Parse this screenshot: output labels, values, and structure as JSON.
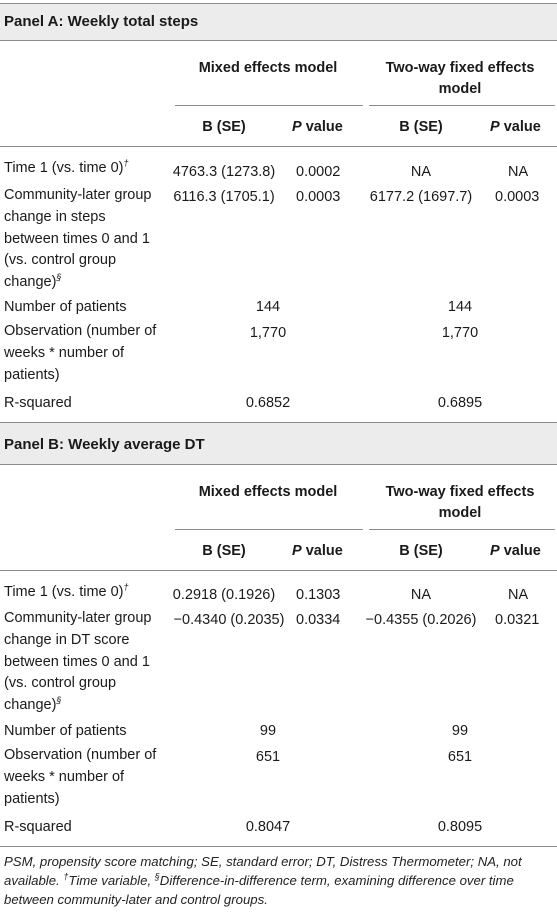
{
  "panels": [
    {
      "title": "Panel A: Weekly total steps",
      "model1": "Mixed effects model",
      "model2_line1": "Two-way fixed effects",
      "model2_line2": "model",
      "col_b": "B (SE)",
      "col_p_italic": "P",
      "col_p_rest": " value",
      "rows": [
        {
          "label_lines": [
            "Time 1 (vs. time 0)"
          ],
          "label_sup": "†",
          "m1_b": "4763.3 (1273.8)",
          "m1_p": "0.0002",
          "m2_b": "NA",
          "m2_p": "NA"
        },
        {
          "label_lines": [
            "Community-later group",
            "change in steps",
            "between times 0 and 1",
            "(vs. control group",
            "change)"
          ],
          "label_sup": "§",
          "m1_b": "6116.3 (1705.1)",
          "m1_p": "0.0003",
          "m2_b": "6177.2 (1697.7)",
          "m2_p": "0.0003"
        },
        {
          "label_lines": [
            "Number of patients"
          ],
          "m1_span": "144",
          "m2_span": "144"
        },
        {
          "label_lines": [
            "Observation (number of",
            "weeks * number of",
            "patients)"
          ],
          "m1_span": "1,770",
          "m2_span": "1,770"
        },
        {
          "label_lines": [
            "R-squared"
          ],
          "m1_span": "0.6852",
          "m2_span": "0.6895"
        }
      ]
    },
    {
      "title": "Panel B: Weekly average DT",
      "model1": "Mixed effects model",
      "model2_line1": "Two-way fixed effects",
      "model2_line2": "model",
      "col_b": "B (SE)",
      "col_p_italic": "P",
      "col_p_rest": " value",
      "rows": [
        {
          "label_lines": [
            "Time 1 (vs. time 0)"
          ],
          "label_sup": "†",
          "m1_b": "0.2918 (0.1926)",
          "m1_p": "0.1303",
          "m2_b": "NA",
          "m2_p": "NA"
        },
        {
          "label_lines": [
            "Community-later group",
            "change in DT score",
            "between times 0 and 1",
            "(vs. control group",
            "change)"
          ],
          "label_sup": "§",
          "m1_b": "−0.4340 (0.2035)",
          "m1_p": "0.0334",
          "m2_b": "−0.4355 (0.2026)",
          "m2_p": "0.0321"
        },
        {
          "label_lines": [
            "Number of patients"
          ],
          "m1_span": "99",
          "m2_span": "99"
        },
        {
          "label_lines": [
            "Observation (number of",
            "weeks * number of",
            "patients)"
          ],
          "m1_span": "651",
          "m2_span": "651"
        },
        {
          "label_lines": [
            "R-squared"
          ],
          "m1_span": "0.8047",
          "m2_span": "0.8095"
        }
      ]
    }
  ],
  "footnote": {
    "line1": "PSM, propensity score matching; SE, standard error; DT, Distress Thermometer; NA, not",
    "line2_a": "available. ",
    "dagger": "†",
    "line2_b": "Time variable, ",
    "section": "§",
    "line2_c": "Difference-in-difference term, examining difference over time",
    "line3": "between community-later and control groups."
  }
}
